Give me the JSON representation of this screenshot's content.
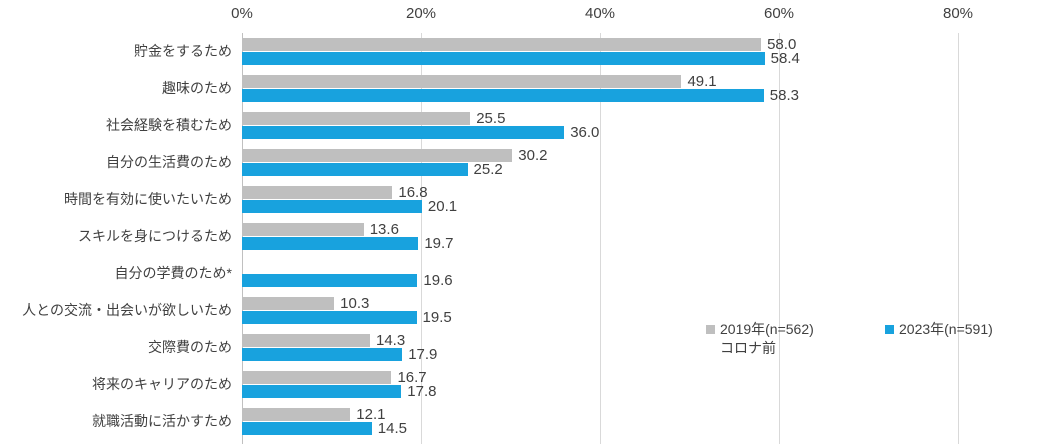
{
  "chart_data": {
    "type": "bar",
    "orientation": "horizontal",
    "title": "",
    "categories": [
      "貯金をするため",
      "趣味のため",
      "社会経験を積むため",
      "自分の生活費のため",
      "時間を有効に使いたいため",
      "スキルを身につけるため",
      "自分の学費のため*",
      "人との交流・出会いが欲しいため",
      "交際費のため",
      "将来のキャリアのため",
      "就職活動に活かすため"
    ],
    "series": [
      {
        "name": "2019年(n=562)",
        "name_line2": "コロナ前",
        "color": "#bfbfbf",
        "values": [
          58.0,
          49.1,
          25.5,
          30.2,
          16.8,
          13.6,
          null,
          10.3,
          14.3,
          16.7,
          12.1
        ]
      },
      {
        "name": "2023年(n=591)",
        "name_line2": "",
        "color": "#18a2de",
        "values": [
          58.4,
          58.3,
          36.0,
          25.2,
          20.1,
          19.7,
          19.6,
          19.5,
          17.9,
          17.8,
          14.5
        ]
      }
    ],
    "x_axis": {
      "tick_labels": [
        "0%",
        "20%",
        "40%",
        "60%",
        "80%"
      ],
      "tick_values": [
        0,
        20,
        40,
        60,
        80
      ],
      "max": 90
    },
    "grid": true,
    "value_labels": true,
    "legend_position": "middle-right",
    "colors": {
      "grid": "#d9d9d9",
      "text": "#404040",
      "background": "#ffffff"
    }
  }
}
